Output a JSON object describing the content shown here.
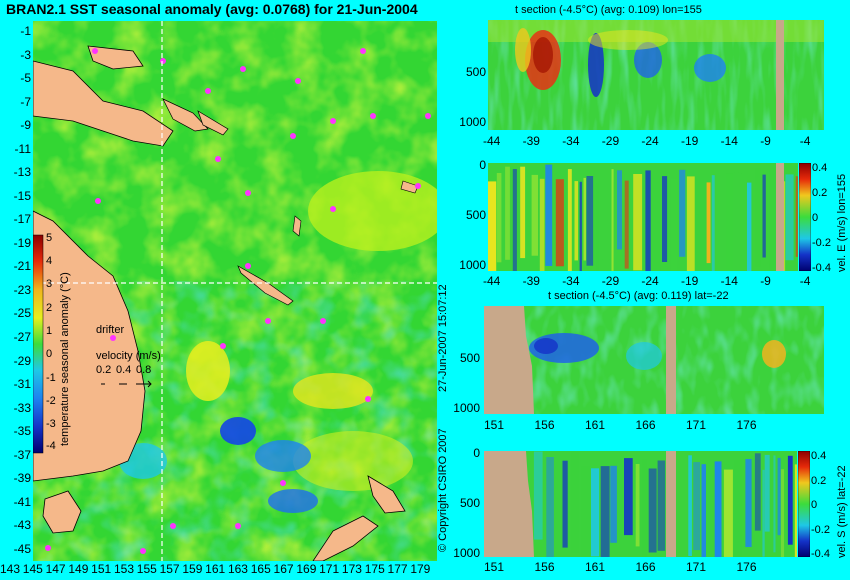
{
  "chart_data": [
    {
      "type": "heatmap",
      "title": "BRAN2.1 SST seasonal anomaly (avg: 0.0768) for 21-Jun-2004",
      "colorbar_label": "temperature seasonal anomaly (°C)",
      "colorbar_ticks": [
        "5",
        "4",
        "3",
        "2",
        "1",
        "0",
        "-1",
        "-2",
        "-3",
        "-4"
      ],
      "colorbar_range": [
        -4,
        5
      ],
      "y_ticks": [
        "-1",
        "-3",
        "-5",
        "-7",
        "-9",
        "-11",
        "-13",
        "-15",
        "-17",
        "-19",
        "-21",
        "-23",
        "-25",
        "-27",
        "-29",
        "-31",
        "-33",
        "-35",
        "-37",
        "-39",
        "-41",
        "-43",
        "-45"
      ],
      "x_ticks": [
        "143",
        "145",
        "147",
        "149",
        "151",
        "153",
        "155",
        "157",
        "159",
        "161",
        "163",
        "165",
        "167",
        "169",
        "171",
        "173",
        "175",
        "177",
        "179"
      ],
      "legend": {
        "drifter_label": "drifter",
        "velocity_label": "velocity (m/s)",
        "velocity_scale": [
          "0.2",
          "0.4",
          "0.8"
        ]
      },
      "copyright": "© Copyright CSIRO 2007",
      "date_stamp": "27-Jun-2007 15:07:12",
      "section_lines": {
        "lon": 155,
        "lat": -22
      }
    },
    {
      "type": "heatmap",
      "title": "t section (-4.5°C) (avg: 0.109) lon=155",
      "y_ticks": [
        "500",
        "1000"
      ],
      "x_ticks": [
        "-44",
        "-39",
        "-34",
        "-29",
        "-24",
        "-19",
        "-14",
        "-9",
        "-4"
      ]
    },
    {
      "type": "heatmap",
      "title": "",
      "colorbar_label": "vel. E (m/s) lon=155",
      "colorbar_ticks": [
        "0.4",
        "0.2",
        "0",
        "-0.2",
        "-0.4"
      ],
      "colorbar_range": [
        -0.4,
        0.4
      ],
      "y_ticks": [
        "0",
        "500",
        "1000"
      ],
      "x_ticks": [
        "-44",
        "-39",
        "-34",
        "-29",
        "-24",
        "-19",
        "-14",
        "-9",
        "-4"
      ]
    },
    {
      "type": "heatmap",
      "title": "t section (-4.5°C) (avg: 0.119) lat=-22",
      "y_ticks": [
        "500",
        "1000"
      ],
      "x_ticks": [
        "151",
        "156",
        "161",
        "166",
        "171",
        "176"
      ]
    },
    {
      "type": "heatmap",
      "title": "",
      "colorbar_label": "vel. S (m/s) lat=-22",
      "colorbar_ticks": [
        "0.4",
        "0.2",
        "0",
        "-0.2",
        "-0.4"
      ],
      "colorbar_range": [
        -0.4,
        0.4
      ],
      "y_ticks": [
        "0",
        "500",
        "1000"
      ],
      "x_ticks": [
        "151",
        "156",
        "161",
        "166",
        "171",
        "176"
      ]
    }
  ]
}
